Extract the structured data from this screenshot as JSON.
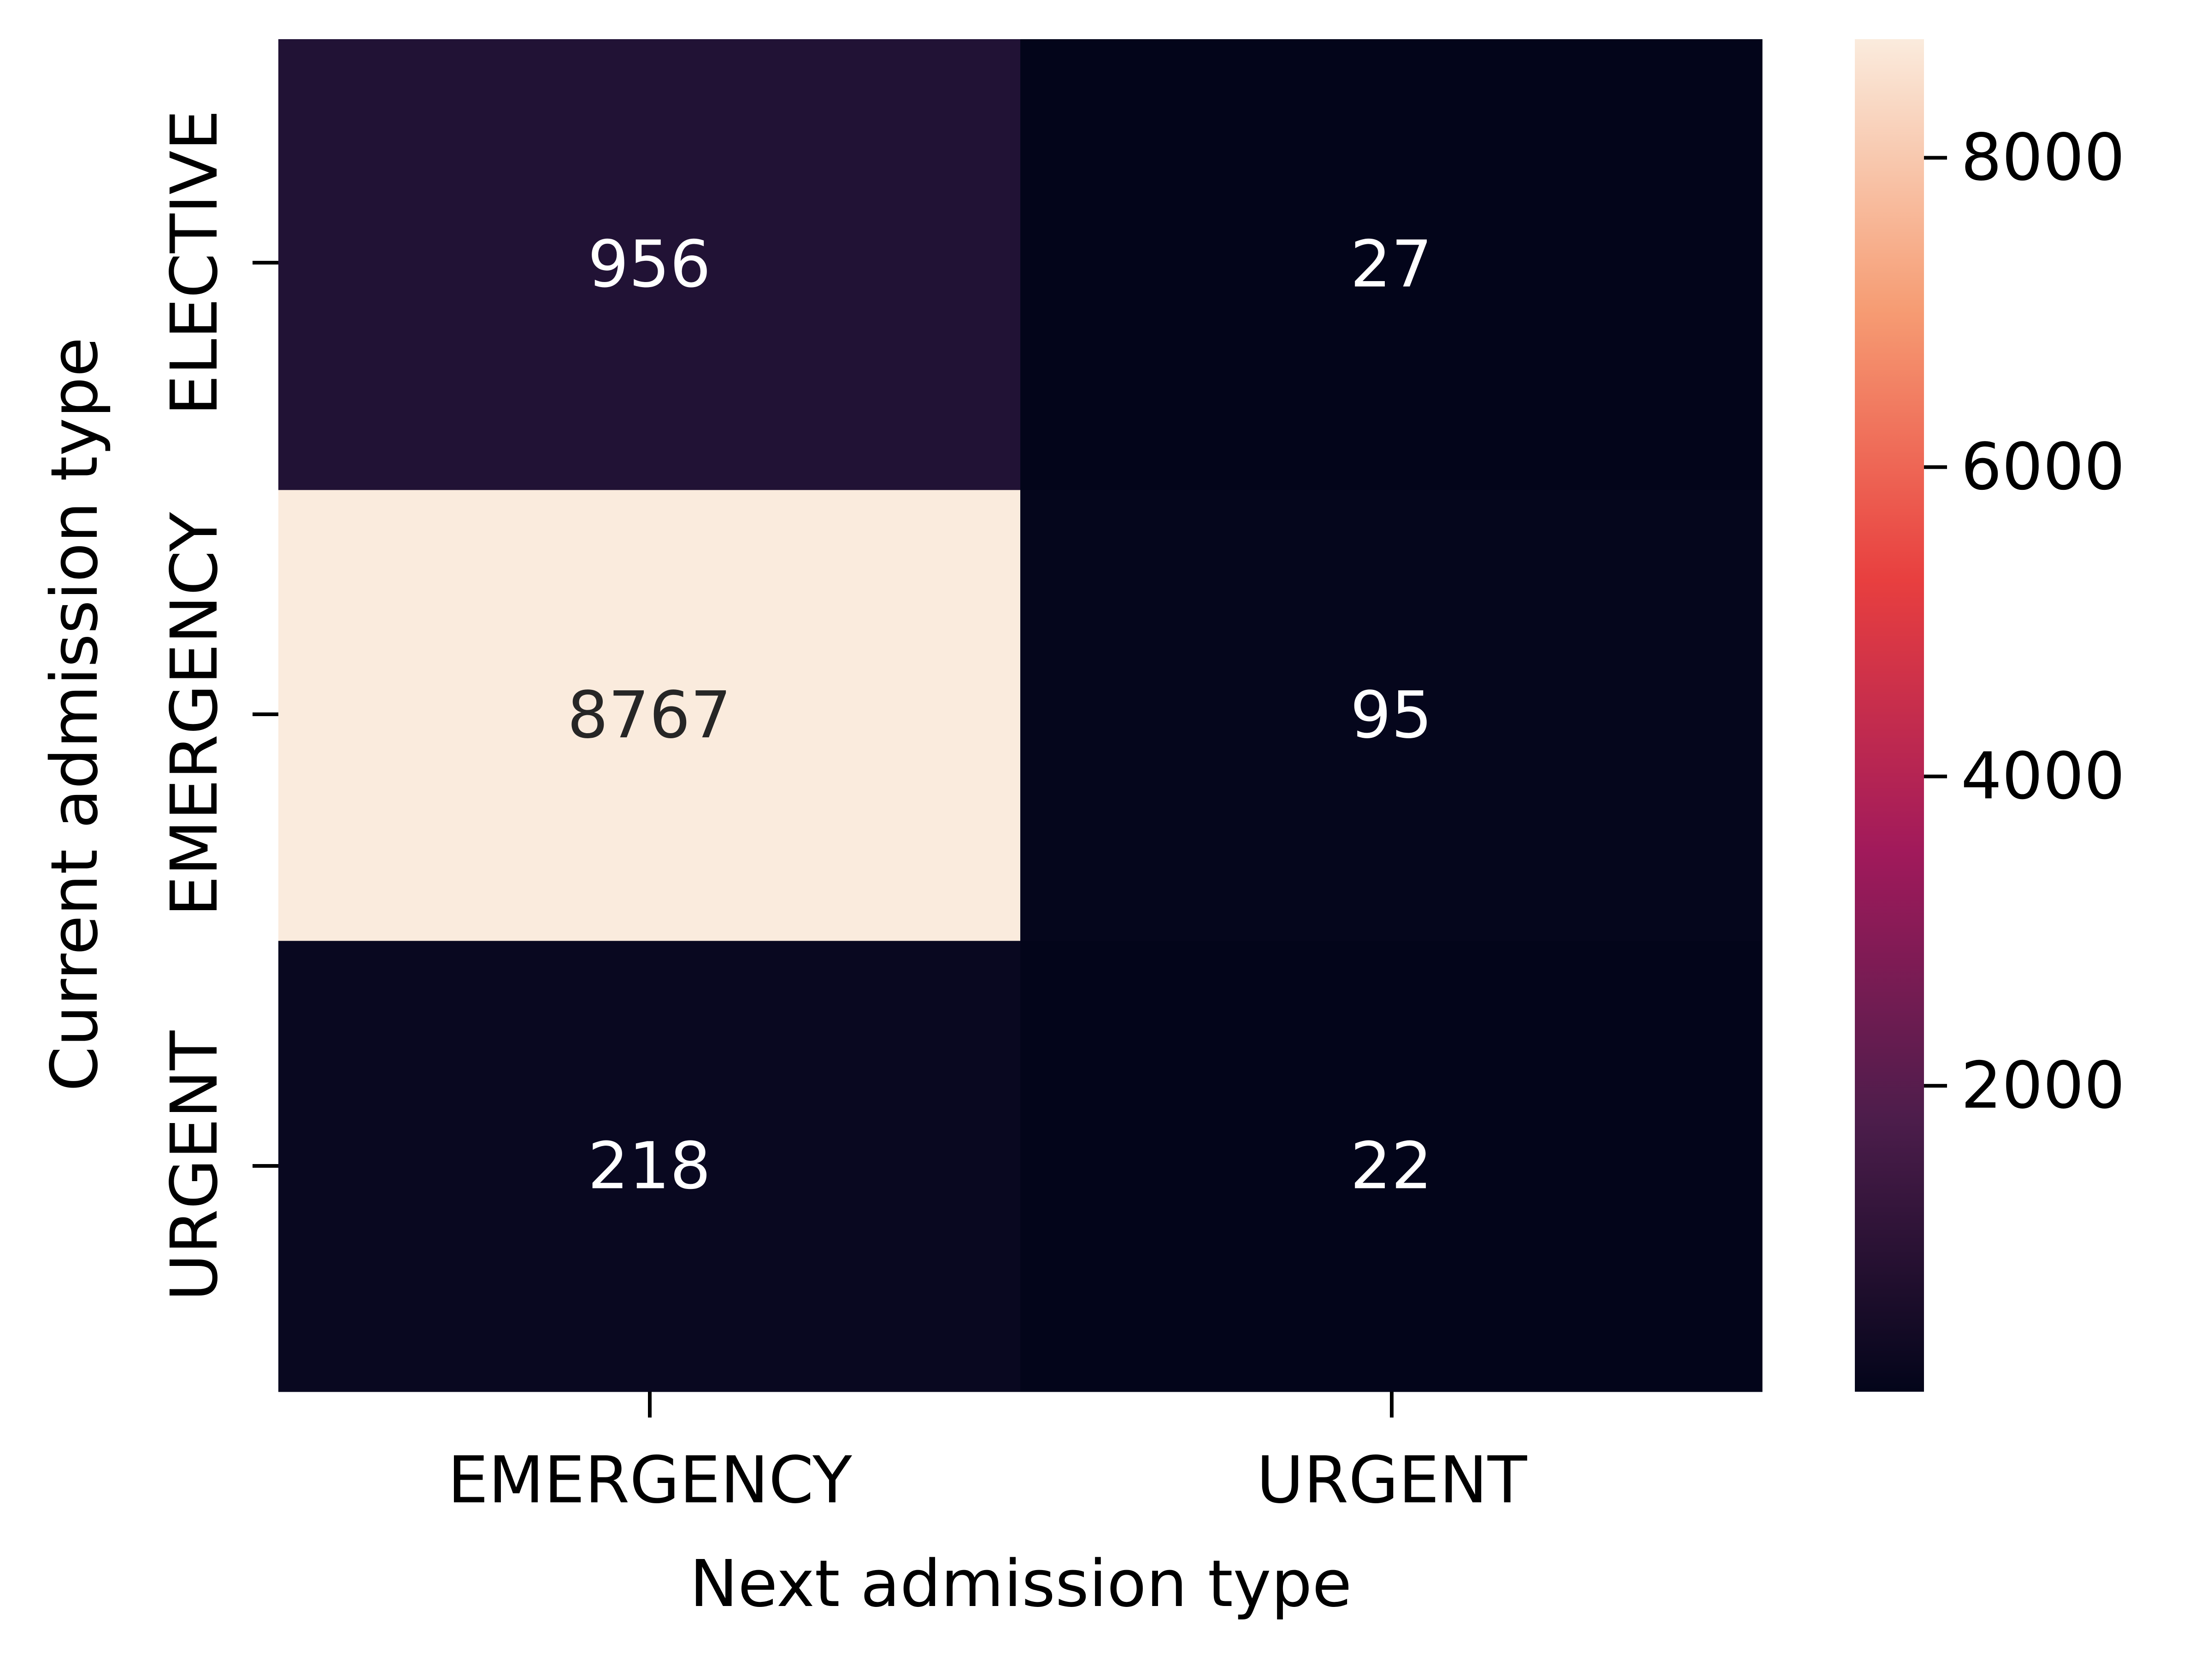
{
  "chart_data": {
    "type": "heatmap",
    "title": "",
    "xlabel": "Next admission type",
    "ylabel": "Current admission type",
    "x_categories": [
      "EMERGENCY",
      "URGENT"
    ],
    "y_categories": [
      "ELECTIVE",
      "EMERGENCY",
      "URGENT"
    ],
    "values": [
      [
        956,
        27
      ],
      [
        8767,
        95
      ],
      [
        218,
        22
      ]
    ],
    "annotations": [
      "956",
      "27",
      "8767",
      "95",
      "218",
      "22"
    ],
    "colormap": "rocket",
    "colorbar": {
      "range": [
        22,
        8767
      ],
      "ticks": [
        2000,
        4000,
        6000,
        8000
      ],
      "tick_labels": [
        "2000",
        "4000",
        "6000",
        "8000"
      ]
    },
    "colors": {
      "annotation_light": "#ffffff",
      "annotation_dark": "#262626"
    },
    "grid": false,
    "legend": "colorbar-right"
  }
}
